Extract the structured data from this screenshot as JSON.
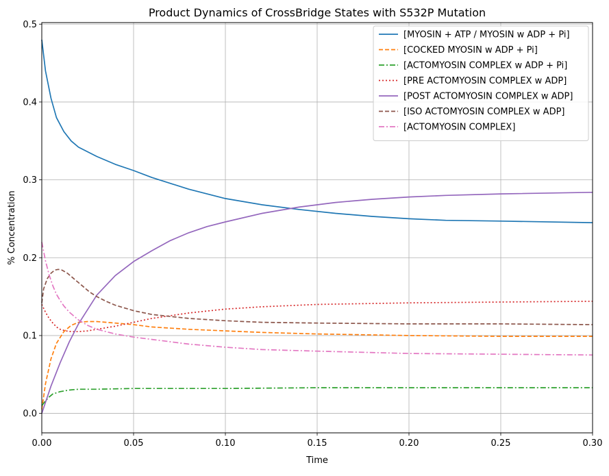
{
  "chart_data": {
    "type": "line",
    "title": "Product Dynamics of CrossBridge States with S532P Mutation",
    "xlabel": "Time",
    "ylabel": "% Concentration",
    "xlim": [
      0.0,
      0.3
    ],
    "ylim": [
      -0.025,
      0.502
    ],
    "xticks": [
      0.0,
      0.05,
      0.1,
      0.15,
      0.2,
      0.25,
      0.3
    ],
    "xtick_labels": [
      "0.00",
      "0.05",
      "0.10",
      "0.15",
      "0.20",
      "0.25",
      "0.30"
    ],
    "yticks": [
      0.0,
      0.1,
      0.2,
      0.3,
      0.4,
      0.5
    ],
    "ytick_labels": [
      "0.0",
      "0.1",
      "0.2",
      "0.3",
      "0.4",
      "0.5"
    ],
    "grid": true,
    "legend_position": "upper right",
    "series": [
      {
        "name": "[MYOSIN + ATP / MYOSIN w ADP + Pi]",
        "color": "#1f77b4",
        "style": "solid",
        "x": [
          0,
          0.002,
          0.005,
          0.008,
          0.012,
          0.016,
          0.02,
          0.03,
          0.04,
          0.05,
          0.06,
          0.08,
          0.1,
          0.12,
          0.14,
          0.16,
          0.18,
          0.2,
          0.22,
          0.25,
          0.3
        ],
        "y": [
          0.48,
          0.44,
          0.405,
          0.38,
          0.362,
          0.35,
          0.342,
          0.33,
          0.32,
          0.312,
          0.303,
          0.288,
          0.276,
          0.268,
          0.262,
          0.257,
          0.253,
          0.25,
          0.248,
          0.247,
          0.245
        ]
      },
      {
        "name": "[COCKED MYOSIN w ADP + Pi]",
        "color": "#ff7f0e",
        "style": "dashed",
        "x": [
          0,
          0.002,
          0.005,
          0.008,
          0.012,
          0.016,
          0.02,
          0.025,
          0.03,
          0.04,
          0.05,
          0.06,
          0.08,
          0.1,
          0.12,
          0.15,
          0.2,
          0.25,
          0.3
        ],
        "y": [
          0.005,
          0.038,
          0.07,
          0.09,
          0.105,
          0.113,
          0.117,
          0.118,
          0.118,
          0.116,
          0.114,
          0.111,
          0.108,
          0.106,
          0.104,
          0.102,
          0.1,
          0.099,
          0.099
        ]
      },
      {
        "name": "[ACTOMYOSIN COMPLEX w ADP + Pi]",
        "color": "#2ca02c",
        "style": "dashdot",
        "x": [
          0,
          0.002,
          0.004,
          0.006,
          0.01,
          0.015,
          0.02,
          0.03,
          0.05,
          0.1,
          0.15,
          0.2,
          0.3
        ],
        "y": [
          0.01,
          0.016,
          0.021,
          0.025,
          0.028,
          0.03,
          0.031,
          0.031,
          0.032,
          0.032,
          0.033,
          0.033,
          0.033
        ]
      },
      {
        "name": "[PRE ACTOMYOSIN COMPLEX w ADP]",
        "color": "#d62728",
        "style": "dotted",
        "x": [
          0,
          0.002,
          0.004,
          0.006,
          0.008,
          0.01,
          0.013,
          0.016,
          0.02,
          0.025,
          0.03,
          0.04,
          0.05,
          0.06,
          0.08,
          0.1,
          0.12,
          0.15,
          0.2,
          0.25,
          0.3
        ],
        "y": [
          0.14,
          0.13,
          0.122,
          0.116,
          0.111,
          0.108,
          0.106,
          0.105,
          0.105,
          0.106,
          0.108,
          0.112,
          0.117,
          0.122,
          0.129,
          0.134,
          0.137,
          0.14,
          0.142,
          0.143,
          0.144
        ]
      },
      {
        "name": "[POST ACTOMYOSIN COMPLEX w ADP]",
        "color": "#9467bd",
        "style": "solid",
        "x": [
          0,
          0.005,
          0.01,
          0.015,
          0.02,
          0.03,
          0.04,
          0.05,
          0.06,
          0.07,
          0.08,
          0.09,
          0.1,
          0.12,
          0.14,
          0.16,
          0.18,
          0.2,
          0.22,
          0.25,
          0.3
        ],
        "y": [
          0.0,
          0.035,
          0.065,
          0.092,
          0.115,
          0.152,
          0.177,
          0.195,
          0.209,
          0.222,
          0.232,
          0.24,
          0.246,
          0.257,
          0.265,
          0.271,
          0.275,
          0.278,
          0.28,
          0.282,
          0.284
        ]
      },
      {
        "name": "[ISO ACTOMYOSIN COMPLEX w ADP]",
        "color": "#8c564b",
        "style": "dashed",
        "x": [
          0,
          0.001,
          0.003,
          0.005,
          0.007,
          0.009,
          0.011,
          0.014,
          0.018,
          0.022,
          0.026,
          0.03,
          0.035,
          0.04,
          0.05,
          0.06,
          0.08,
          0.1,
          0.12,
          0.15,
          0.2,
          0.25,
          0.3
        ],
        "y": [
          0.142,
          0.16,
          0.173,
          0.18,
          0.184,
          0.185,
          0.184,
          0.18,
          0.172,
          0.164,
          0.156,
          0.15,
          0.144,
          0.139,
          0.132,
          0.127,
          0.122,
          0.119,
          0.117,
          0.116,
          0.115,
          0.115,
          0.114
        ]
      },
      {
        "name": "[ACTOMYOSIN COMPLEX]",
        "color": "#e377c2",
        "style": "dashdot",
        "x": [
          0,
          0.002,
          0.004,
          0.006,
          0.008,
          0.01,
          0.012,
          0.015,
          0.02,
          0.025,
          0.03,
          0.04,
          0.05,
          0.06,
          0.08,
          0.1,
          0.12,
          0.15,
          0.2,
          0.25,
          0.3
        ],
        "y": [
          0.22,
          0.196,
          0.178,
          0.164,
          0.153,
          0.145,
          0.138,
          0.13,
          0.12,
          0.113,
          0.108,
          0.102,
          0.098,
          0.095,
          0.089,
          0.085,
          0.082,
          0.08,
          0.077,
          0.076,
          0.075
        ]
      }
    ]
  }
}
